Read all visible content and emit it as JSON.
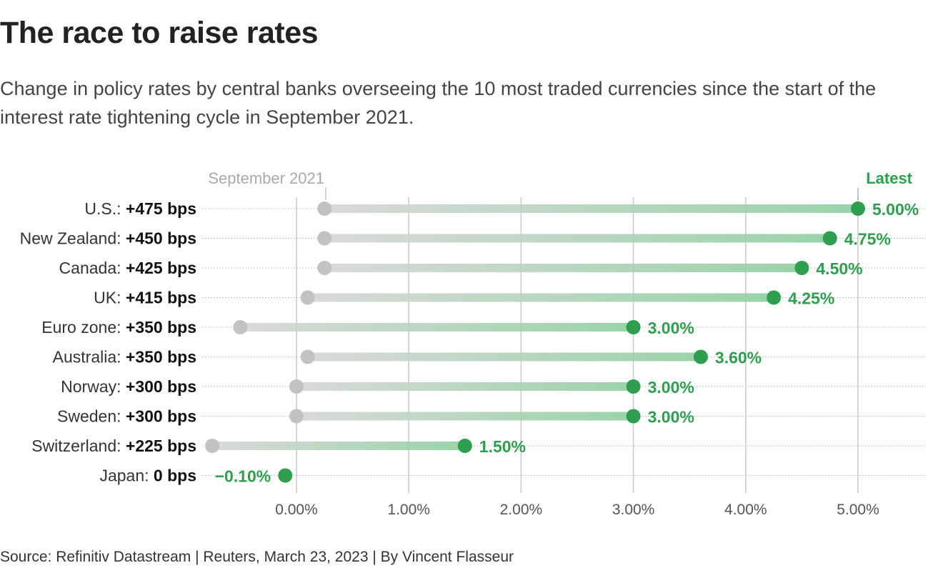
{
  "title": "The race to raise rates",
  "subtitle": "Change in policy rates by central banks overseeing the 10 most traded currencies since the start of the interest rate tightening cycle in September 2021.",
  "source": "Source: Refinitiv Datastream | Reuters, March 23, 2023 | By Vincent Flasseur",
  "colors": {
    "latest": "#2e9e4f",
    "start": "#c2c2c2",
    "bar_end": "#8fcf9f",
    "grid": "#c8c8c8"
  },
  "chart_data": {
    "type": "dumbbell",
    "start_label": "September 2021",
    "end_label": "Latest",
    "xlim": [
      -0.8,
      5.1
    ],
    "ticks": [
      0,
      1,
      2,
      3,
      4,
      5
    ],
    "tick_labels": [
      "0.00%",
      "1.00%",
      "2.00%",
      "3.00%",
      "4.00%",
      "5.00%"
    ],
    "grid": true,
    "rows": [
      {
        "country": "U.S.:",
        "change": "+475 bps",
        "start": 0.25,
        "latest": 5.0,
        "latest_label": "5.00%"
      },
      {
        "country": "New Zealand:",
        "change": "+450 bps",
        "start": 0.25,
        "latest": 4.75,
        "latest_label": "4.75%"
      },
      {
        "country": "Canada:",
        "change": "+425 bps",
        "start": 0.25,
        "latest": 4.5,
        "latest_label": "4.50%"
      },
      {
        "country": "UK:",
        "change": "+415 bps",
        "start": 0.1,
        "latest": 4.25,
        "latest_label": "4.25%"
      },
      {
        "country": "Euro zone:",
        "change": "+350 bps",
        "start": -0.5,
        "latest": 3.0,
        "latest_label": "3.00%"
      },
      {
        "country": "Australia:",
        "change": "+350 bps",
        "start": 0.1,
        "latest": 3.6,
        "latest_label": "3.60%"
      },
      {
        "country": "Norway:",
        "change": "+300 bps",
        "start": 0.0,
        "latest": 3.0,
        "latest_label": "3.00%"
      },
      {
        "country": "Sweden:",
        "change": "+300 bps",
        "start": 0.0,
        "latest": 3.0,
        "latest_label": "3.00%"
      },
      {
        "country": "Switzerland:",
        "change": "+225 bps",
        "start": -0.75,
        "latest": 1.5,
        "latest_label": "1.50%"
      },
      {
        "country": "Japan:",
        "change": "0 bps",
        "start": -0.1,
        "latest": -0.1,
        "latest_label": "−0.10%"
      }
    ]
  }
}
